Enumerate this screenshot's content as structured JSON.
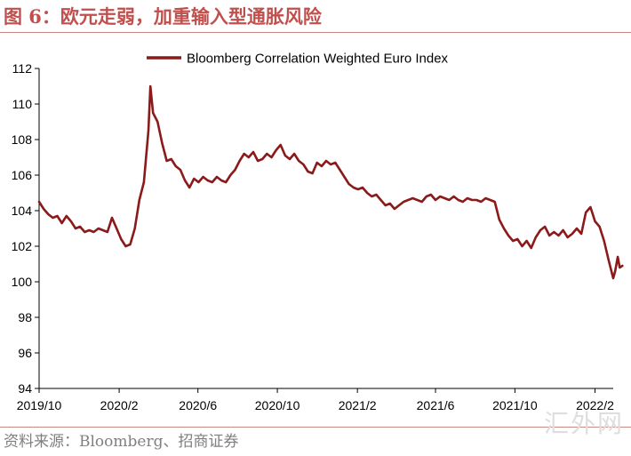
{
  "header": {
    "title": "图 6：欧元走弱，加重输入型通胀风险"
  },
  "footer": {
    "source": "资料来源：Bloomberg、招商证券"
  },
  "watermark": {
    "text": "汇外网"
  },
  "colors": {
    "series": "#8b1a1a",
    "title": "#c0504d",
    "rule": "#c98a86"
  },
  "chart_data": {
    "type": "line",
    "title": "",
    "xlabel": "",
    "ylabel": "",
    "ylim": [
      94,
      112
    ],
    "yticks": [
      94,
      96,
      98,
      100,
      102,
      104,
      106,
      108,
      110,
      112
    ],
    "xticks": [
      "2019/10",
      "2020/2",
      "2020/6",
      "2020/10",
      "2021/2",
      "2021/6",
      "2021/10",
      "2022/2"
    ],
    "xrange": [
      "2019/10",
      "2022/3"
    ],
    "grid": false,
    "legend": "top-center",
    "series": [
      {
        "name": "Bloomberg Correlation Weighted Euro Index",
        "points": [
          [
            "2019/10/01",
            104.5
          ],
          [
            "2019/10/08",
            104.1
          ],
          [
            "2019/10/15",
            103.8
          ],
          [
            "2019/10/22",
            103.6
          ],
          [
            "2019/10/29",
            103.7
          ],
          [
            "2019/11/05",
            103.3
          ],
          [
            "2019/11/12",
            103.7
          ],
          [
            "2019/11/19",
            103.4
          ],
          [
            "2019/11/26",
            103.0
          ],
          [
            "2019/12/03",
            103.1
          ],
          [
            "2019/12/10",
            102.8
          ],
          [
            "2019/12/17",
            102.9
          ],
          [
            "2019/12/24",
            102.8
          ],
          [
            "2019/12/31",
            103.0
          ],
          [
            "2020/01/07",
            102.9
          ],
          [
            "2020/01/14",
            102.8
          ],
          [
            "2020/01/21",
            103.6
          ],
          [
            "2020/01/28",
            103.0
          ],
          [
            "2020/02/04",
            102.4
          ],
          [
            "2020/02/11",
            102.0
          ],
          [
            "2020/02/18",
            102.1
          ],
          [
            "2020/02/25",
            103.0
          ],
          [
            "2020/03/03",
            104.6
          ],
          [
            "2020/03/10",
            105.6
          ],
          [
            "2020/03/17",
            108.5
          ],
          [
            "2020/03/20",
            111.0
          ],
          [
            "2020/03/24",
            109.5
          ],
          [
            "2020/03/31",
            109.0
          ],
          [
            "2020/04/07",
            107.8
          ],
          [
            "2020/04/14",
            106.8
          ],
          [
            "2020/04/21",
            106.9
          ],
          [
            "2020/04/28",
            106.5
          ],
          [
            "2020/05/05",
            106.3
          ],
          [
            "2020/05/12",
            105.7
          ],
          [
            "2020/05/19",
            105.3
          ],
          [
            "2020/05/26",
            105.8
          ],
          [
            "2020/06/02",
            105.6
          ],
          [
            "2020/06/09",
            105.9
          ],
          [
            "2020/06/16",
            105.7
          ],
          [
            "2020/06/23",
            105.6
          ],
          [
            "2020/06/30",
            105.9
          ],
          [
            "2020/07/07",
            105.7
          ],
          [
            "2020/07/14",
            105.6
          ],
          [
            "2020/07/21",
            106.0
          ],
          [
            "2020/07/28",
            106.3
          ],
          [
            "2020/08/04",
            106.8
          ],
          [
            "2020/08/11",
            107.2
          ],
          [
            "2020/08/18",
            107.0
          ],
          [
            "2020/08/25",
            107.3
          ],
          [
            "2020/09/01",
            106.8
          ],
          [
            "2020/09/08",
            106.9
          ],
          [
            "2020/09/15",
            107.2
          ],
          [
            "2020/09/22",
            107.0
          ],
          [
            "2020/09/29",
            107.4
          ],
          [
            "2020/10/06",
            107.7
          ],
          [
            "2020/10/13",
            107.1
          ],
          [
            "2020/10/20",
            106.9
          ],
          [
            "2020/10/27",
            107.2
          ],
          [
            "2020/11/03",
            106.8
          ],
          [
            "2020/11/10",
            106.6
          ],
          [
            "2020/11/17",
            106.2
          ],
          [
            "2020/11/24",
            106.1
          ],
          [
            "2020/12/01",
            106.7
          ],
          [
            "2020/12/08",
            106.5
          ],
          [
            "2020/12/15",
            106.8
          ],
          [
            "2020/12/22",
            106.6
          ],
          [
            "2020/12/29",
            106.7
          ],
          [
            "2021/01/05",
            106.3
          ],
          [
            "2021/01/12",
            105.9
          ],
          [
            "2021/01/19",
            105.5
          ],
          [
            "2021/01/26",
            105.3
          ],
          [
            "2021/02/02",
            105.2
          ],
          [
            "2021/02/09",
            105.3
          ],
          [
            "2021/02/16",
            105.0
          ],
          [
            "2021/02/23",
            104.8
          ],
          [
            "2021/03/02",
            104.9
          ],
          [
            "2021/03/09",
            104.6
          ],
          [
            "2021/03/16",
            104.3
          ],
          [
            "2021/03/23",
            104.4
          ],
          [
            "2021/03/30",
            104.1
          ],
          [
            "2021/04/06",
            104.3
          ],
          [
            "2021/04/13",
            104.5
          ],
          [
            "2021/04/20",
            104.6
          ],
          [
            "2021/04/27",
            104.7
          ],
          [
            "2021/05/04",
            104.6
          ],
          [
            "2021/05/11",
            104.5
          ],
          [
            "2021/05/18",
            104.8
          ],
          [
            "2021/05/25",
            104.9
          ],
          [
            "2021/06/01",
            104.6
          ],
          [
            "2021/06/08",
            104.8
          ],
          [
            "2021/06/15",
            104.7
          ],
          [
            "2021/06/22",
            104.6
          ],
          [
            "2021/06/29",
            104.8
          ],
          [
            "2021/07/06",
            104.6
          ],
          [
            "2021/07/13",
            104.5
          ],
          [
            "2021/07/20",
            104.7
          ],
          [
            "2021/07/27",
            104.6
          ],
          [
            "2021/08/03",
            104.6
          ],
          [
            "2021/08/10",
            104.5
          ],
          [
            "2021/08/17",
            104.7
          ],
          [
            "2021/08/24",
            104.6
          ],
          [
            "2021/08/31",
            104.5
          ],
          [
            "2021/09/07",
            103.5
          ],
          [
            "2021/09/14",
            103.0
          ],
          [
            "2021/09/21",
            102.6
          ],
          [
            "2021/09/28",
            102.3
          ],
          [
            "2021/10/05",
            102.4
          ],
          [
            "2021/10/12",
            102.0
          ],
          [
            "2021/10/19",
            102.3
          ],
          [
            "2021/10/26",
            101.9
          ],
          [
            "2021/11/02",
            102.5
          ],
          [
            "2021/11/09",
            102.9
          ],
          [
            "2021/11/16",
            103.1
          ],
          [
            "2021/11/23",
            102.6
          ],
          [
            "2021/11/30",
            102.8
          ],
          [
            "2021/12/07",
            102.6
          ],
          [
            "2021/12/14",
            102.9
          ],
          [
            "2021/12/21",
            102.5
          ],
          [
            "2021/12/28",
            102.7
          ],
          [
            "2022/01/04",
            103.0
          ],
          [
            "2022/01/11",
            102.7
          ],
          [
            "2022/01/18",
            103.9
          ],
          [
            "2022/01/25",
            104.2
          ],
          [
            "2022/02/01",
            103.4
          ],
          [
            "2022/02/08",
            103.1
          ],
          [
            "2022/02/15",
            102.3
          ],
          [
            "2022/02/22",
            101.2
          ],
          [
            "2022/03/01",
            100.2
          ],
          [
            "2022/03/04",
            100.6
          ],
          [
            "2022/03/08",
            101.4
          ],
          [
            "2022/03/11",
            100.8
          ],
          [
            "2022/03/15",
            100.9
          ]
        ]
      }
    ]
  }
}
